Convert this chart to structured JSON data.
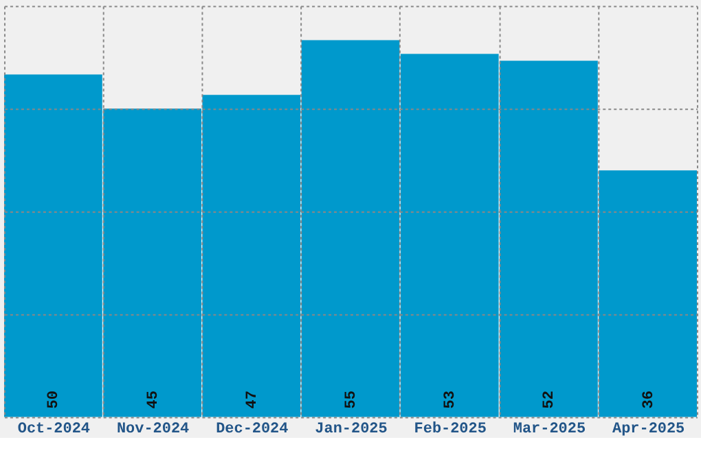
{
  "chart_data": {
    "type": "bar",
    "categories": [
      "Oct-2024",
      "Nov-2024",
      "Dec-2024",
      "Jan-2025",
      "Feb-2025",
      "Mar-2025",
      "Apr-2025"
    ],
    "values": [
      50,
      45,
      47,
      55,
      53,
      52,
      36
    ],
    "color": "#0099cc",
    "ylim": [
      0,
      60
    ],
    "yticks": [
      {
        "value": 0,
        "label": null
      },
      {
        "value": 15,
        "label": null
      },
      {
        "value": 30,
        "label": null
      },
      {
        "value": 45,
        "label": null
      },
      {
        "value": 60,
        "label": null
      }
    ],
    "grid": true,
    "data_labels": true,
    "tick_labels": "x"
  }
}
